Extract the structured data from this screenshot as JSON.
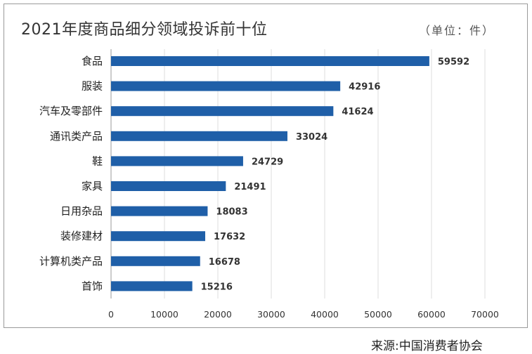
{
  "chart_data": {
    "type": "bar",
    "orientation": "horizontal",
    "title": "2021年度商品细分领域投诉前十位",
    "unit_label": "（单位：件）",
    "categories": [
      "食品",
      "服装",
      "汽车及零部件",
      "通讯类产品",
      "鞋",
      "家具",
      "日用杂品",
      "装修建材",
      "计算机类产品",
      "首饰"
    ],
    "values": [
      59592,
      42916,
      41624,
      33024,
      24729,
      21491,
      18083,
      17632,
      16678,
      15216
    ],
    "data_labels": [
      "59592",
      "42916",
      "41624",
      "33024",
      "24729",
      "21491",
      "18083",
      "17632",
      "16678",
      "15216"
    ],
    "xlim": [
      0,
      70000
    ],
    "x_ticks": [
      "0",
      "10000",
      "20000",
      "30000",
      "40000",
      "50000",
      "60000",
      "70000"
    ],
    "x_tick_values": [
      0,
      10000,
      20000,
      30000,
      40000,
      50000,
      60000,
      70000
    ],
    "grid": "vertical",
    "legend": "none",
    "bar_color": "#1f5fa8",
    "grid_color": "#dcdcdc"
  },
  "source": {
    "label": "来源:",
    "org": "中国消费者协会"
  }
}
